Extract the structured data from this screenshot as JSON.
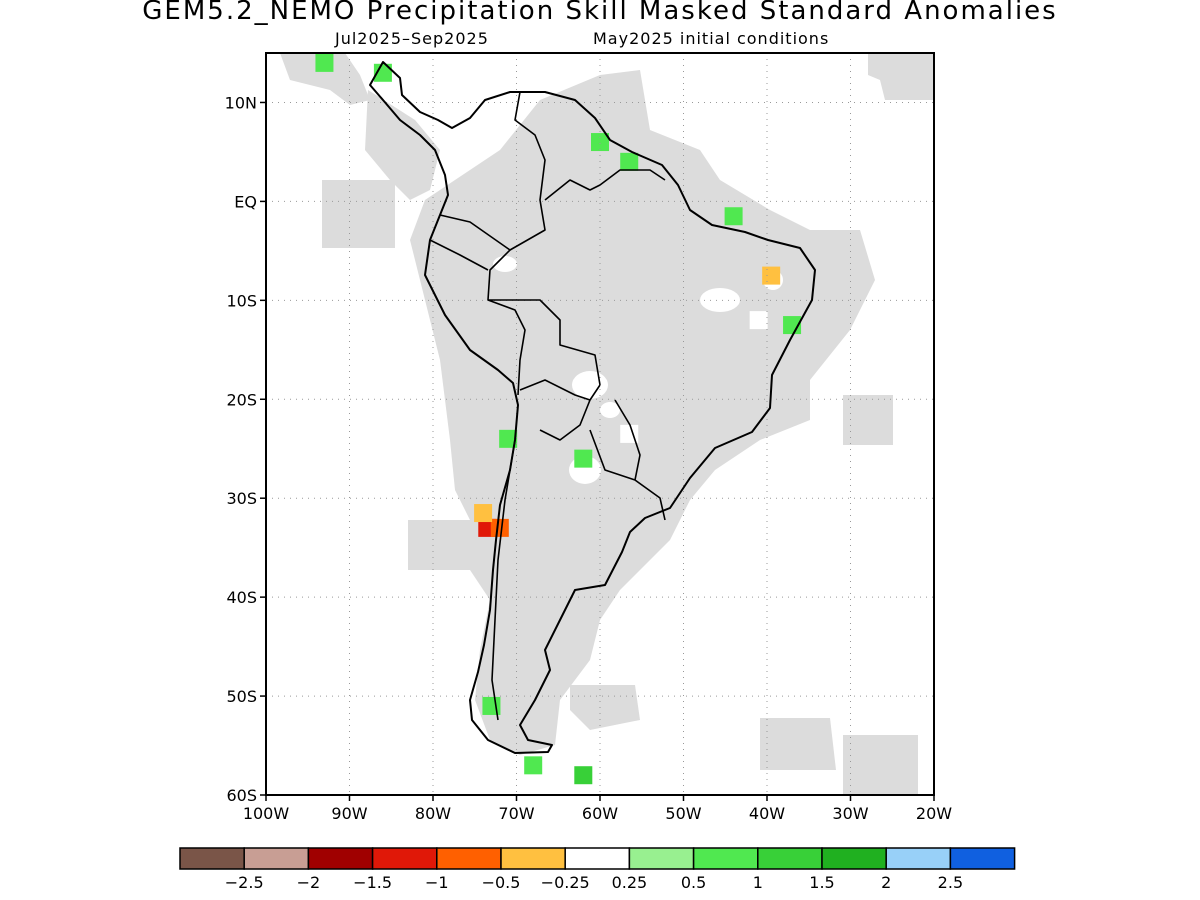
{
  "title": "GEM5.2_NEMO Precipitation Skill Masked Standard Anomalies",
  "period": "Jul2025–Sep2025",
  "initial_conditions": "May2025 initial conditions",
  "map": {
    "lon_range": [
      -100,
      -20
    ],
    "lat_range": [
      -60,
      15
    ],
    "lon_ticks": [
      "100W",
      "90W",
      "80W",
      "70W",
      "60W",
      "50W",
      "40W",
      "30W",
      "20W"
    ],
    "lat_ticks": [
      "10N",
      "EQ",
      "10S",
      "20S",
      "30S",
      "40S",
      "50S",
      "60S"
    ],
    "grid": "dotted",
    "masked_color": "#dcdcdc"
  },
  "colorbar": {
    "colors": [
      "#7a5548",
      "#c89e94",
      "#a00000",
      "#e01808",
      "#ff6000",
      "#ffc040",
      "#ffffff",
      "#98f090",
      "#50e850",
      "#38d038",
      "#20b020",
      "#98d0f8",
      "#1060e0"
    ],
    "labels": [
      "−2.5",
      "−2",
      "−1.5",
      "−1",
      "−0.5",
      "−0.25",
      "0.25",
      "0.5",
      "1",
      "1.5",
      "2",
      "2.5"
    ]
  },
  "anomaly_patches": [
    {
      "lon": -73.5,
      "lat": -33.0,
      "value": -1.5
    },
    {
      "lon": -72.0,
      "lat": -33.0,
      "value": -1.0
    },
    {
      "lon": -74.0,
      "lat": -31.5,
      "value": -0.5
    },
    {
      "lon": -39.5,
      "lat": -7.5,
      "value": -0.5
    },
    {
      "lon": -41.0,
      "lat": -12.0,
      "value": -0.25
    },
    {
      "lon": -56.5,
      "lat": -23.5,
      "value": -0.25
    },
    {
      "lon": -93.0,
      "lat": 14.0,
      "value": 0.5
    },
    {
      "lon": -86.0,
      "lat": 13.0,
      "value": 0.5
    },
    {
      "lon": -60.0,
      "lat": 6.0,
      "value": 0.5
    },
    {
      "lon": -56.5,
      "lat": 4.0,
      "value": 0.5
    },
    {
      "lon": -44.0,
      "lat": -1.5,
      "value": 0.5
    },
    {
      "lon": -37.0,
      "lat": -12.5,
      "value": 0.5
    },
    {
      "lon": -71.0,
      "lat": -24.0,
      "value": 0.5
    },
    {
      "lon": -62.0,
      "lat": -26.0,
      "value": 0.5
    },
    {
      "lon": -73.0,
      "lat": -51.0,
      "value": 0.5
    },
    {
      "lon": -68.0,
      "lat": -57.0,
      "value": 0.5
    },
    {
      "lon": -62.0,
      "lat": -58.0,
      "value": 1.0
    }
  ]
}
